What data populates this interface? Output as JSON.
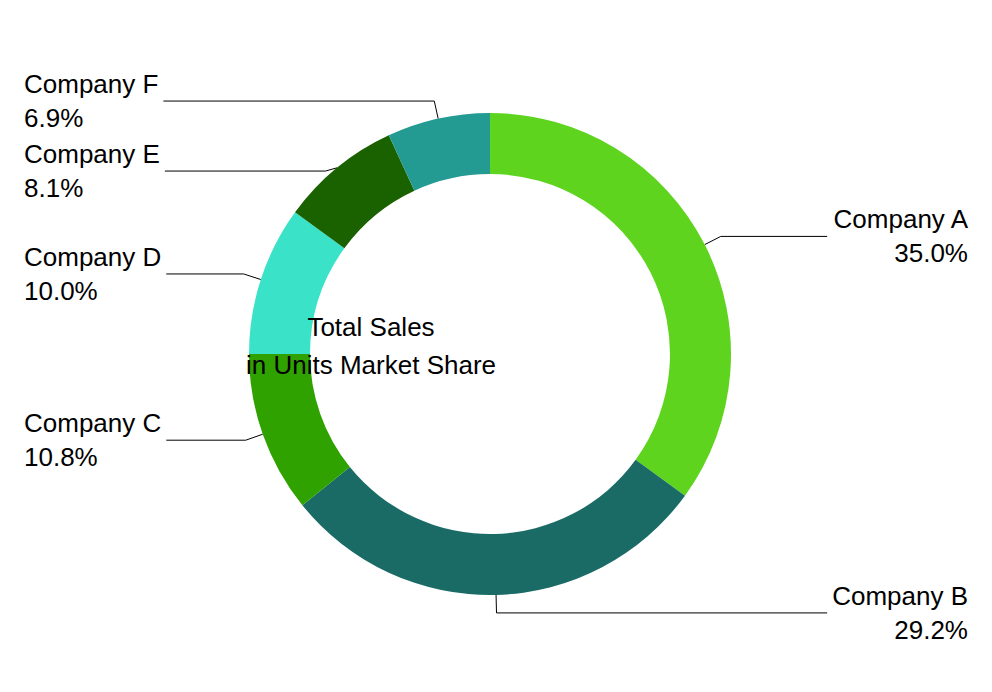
{
  "chart_data": {
    "type": "pie",
    "title": "Total Sales\nin Units Market Share",
    "categories": [
      "Company A",
      "Company B",
      "Company C",
      "Company D",
      "Company E",
      "Company F"
    ],
    "values": [
      35.0,
      29.2,
      10.8,
      10.0,
      8.1,
      6.9
    ],
    "value_labels": [
      "35.0%",
      "29.2%",
      "10.8%",
      "10.0%",
      "8.1%",
      "6.9%"
    ],
    "colors": [
      "#5fd41f",
      "#1a6b66",
      "#30a200",
      "#3ae3c8",
      "#1a6100",
      "#239b93"
    ],
    "data_labels": true
  }
}
